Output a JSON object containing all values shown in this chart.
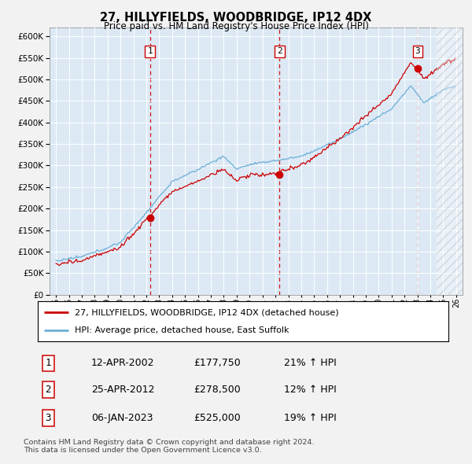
{
  "title": "27, HILLYFIELDS, WOODBRIDGE, IP12 4DX",
  "subtitle": "Price paid vs. HM Land Registry's House Price Index (HPI)",
  "bg_color": "#dce9f5",
  "hpi_color": "#6baed6",
  "price_color": "#cc0000",
  "grid_color": "#ffffff",
  "fig_bg": "#f2f2f2",
  "sale_dates": [
    2002.28,
    2012.32,
    2023.02
  ],
  "sale_prices": [
    177750,
    278500,
    525000
  ],
  "sale_labels": [
    "1",
    "2",
    "3"
  ],
  "legend_line1": "27, HILLYFIELDS, WOODBRIDGE, IP12 4DX (detached house)",
  "legend_line2": "HPI: Average price, detached house, East Suffolk",
  "table_rows": [
    [
      "1",
      "12-APR-2002",
      "£177,750",
      "21% ↑ HPI"
    ],
    [
      "2",
      "25-APR-2012",
      "£278,500",
      "12% ↑ HPI"
    ],
    [
      "3",
      "06-JAN-2023",
      "£525,000",
      "19% ↑ HPI"
    ]
  ],
  "footer": "Contains HM Land Registry data © Crown copyright and database right 2024.\nThis data is licensed under the Open Government Licence v3.0.",
  "ylim": [
    0,
    620000
  ],
  "yticks": [
    0,
    50000,
    100000,
    150000,
    200000,
    250000,
    300000,
    350000,
    400000,
    450000,
    500000,
    550000,
    600000
  ],
  "xlim_start": 1994.5,
  "xlim_end": 2026.5,
  "hatch_start": 2024.5
}
